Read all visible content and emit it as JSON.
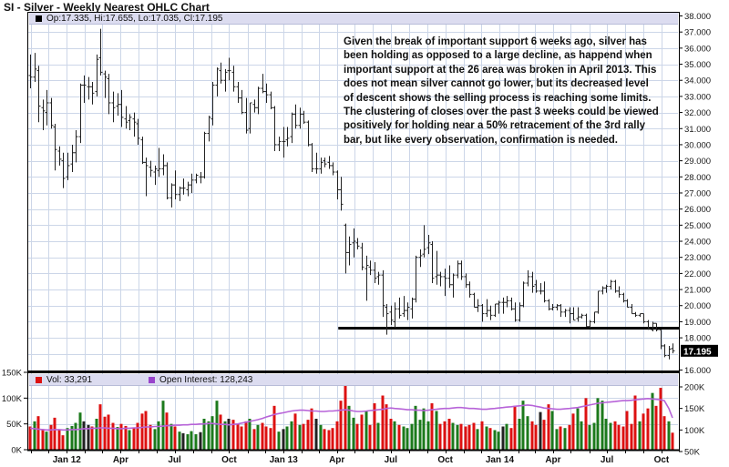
{
  "title": "SI - Silver - Weekly Nearest OHLC Chart",
  "price_legend": {
    "marker_color": "#000000",
    "text": "Op:17.335, Hi:17.655, Lo:17.035, Cl:17.195"
  },
  "volume_legend": {
    "vol_text": "Vol: 33,291",
    "vol_color": "#dd1111",
    "oi_text": "Open Interest: 128,243",
    "oi_color": "#9944cc"
  },
  "annotation": {
    "lines": [
      "Given the break of important support 6 weeks ago, silver has",
      "been holding as opposed to a large decline, as happend when",
      "important support at the 26 area was broken in April 2013.  This",
      "does not mean silver cannot go lower, but its decreased level",
      "of descent shows the selling process is reaching some limits.",
      "The clustering of closes over the past 3 weeks could be viewed",
      "positively for holding near a 50% retracement of the 3rd rally",
      "bar, but like every observation, confirmation is needed."
    ]
  },
  "axes": {
    "price_tick_values": [
      38,
      37,
      36,
      35,
      34,
      33,
      32,
      31,
      30,
      29,
      28,
      27,
      26,
      25,
      24,
      23,
      22,
      21,
      20,
      19,
      18,
      16
    ],
    "price_highlight": {
      "label": "17.195",
      "value": 17.195
    },
    "volume_ticks_left": [
      {
        "v": 150,
        "t": "150K"
      },
      {
        "v": 100,
        "t": "100K"
      },
      {
        "v": 50,
        "t": "50K"
      },
      {
        "v": 0,
        "t": "0K"
      }
    ],
    "oi_ticks_right": [
      {
        "v": 200,
        "t": "200K"
      },
      {
        "v": 150,
        "t": "150K"
      },
      {
        "v": 100,
        "t": "100K"
      },
      {
        "v": 50,
        "t": "50K"
      }
    ],
    "x_labels": [
      {
        "m": 2,
        "t": "Jan 12"
      },
      {
        "m": 5,
        "t": "Apr"
      },
      {
        "m": 8,
        "t": "Jul"
      },
      {
        "m": 11,
        "t": "Oct"
      },
      {
        "m": 14,
        "t": "Jan 13"
      },
      {
        "m": 17,
        "t": "Apr"
      },
      {
        "m": 20,
        "t": "Jul"
      },
      {
        "m": 23,
        "t": "Oct"
      },
      {
        "m": 26,
        "t": "Jan 14"
      },
      {
        "m": 29,
        "t": "Apr"
      },
      {
        "m": 32,
        "t": "Jul"
      },
      {
        "m": 35,
        "t": "Oct"
      }
    ]
  },
  "chart_data": {
    "type": "ohlc",
    "interval": "weekly",
    "start_date": "2011-10-31",
    "title": "SI - Silver - Weekly Nearest OHLC Chart",
    "price_axis": {
      "min": 16,
      "max": 38,
      "tick_step": 1,
      "last_close": 17.195
    },
    "volume_axis": {
      "min": 0,
      "max": 150000
    },
    "oi_axis": {
      "min": 50000,
      "max": 200000,
      "last_value": 128243
    },
    "last_week": {
      "open": 17.335,
      "high": 17.655,
      "low": 17.035,
      "close": 17.195,
      "volume": 33291,
      "open_interest": 128243
    },
    "support_line": {
      "price": 18.6,
      "start_week_index": 75
    },
    "ohlc": [
      [
        34.3,
        35.6,
        33.5,
        34.2
      ],
      [
        34.2,
        35.7,
        33.9,
        34.7
      ],
      [
        34.6,
        34.9,
        31.4,
        32.4
      ],
      [
        32.3,
        32.8,
        30.9,
        32.1
      ],
      [
        32.0,
        33.4,
        31.2,
        32.6
      ],
      [
        32.6,
        32.9,
        31.0,
        31.2
      ],
      [
        31.1,
        31.3,
        28.4,
        29.7
      ],
      [
        29.6,
        29.9,
        28.7,
        29.1
      ],
      [
        29.0,
        29.5,
        27.3,
        27.9
      ],
      [
        28.0,
        29.5,
        27.8,
        28.7
      ],
      [
        28.8,
        30.0,
        28.3,
        29.5
      ],
      [
        29.5,
        30.9,
        28.9,
        30.5
      ],
      [
        30.5,
        33.8,
        30.1,
        33.7
      ],
      [
        33.7,
        34.3,
        32.6,
        33.7
      ],
      [
        33.6,
        34.2,
        32.8,
        33.6
      ],
      [
        33.6,
        33.9,
        32.5,
        33.2
      ],
      [
        33.3,
        35.6,
        33.0,
        35.3
      ],
      [
        35.4,
        37.2,
        34.3,
        34.5
      ],
      [
        34.4,
        34.6,
        32.9,
        34.2
      ],
      [
        34.1,
        34.4,
        31.9,
        32.6
      ],
      [
        32.6,
        33.3,
        31.4,
        32.3
      ],
      [
        32.4,
        33.2,
        31.8,
        32.5
      ],
      [
        32.5,
        33.4,
        31.1,
        31.7
      ],
      [
        31.6,
        32.4,
        31.0,
        31.4
      ],
      [
        31.5,
        31.9,
        30.9,
        31.7
      ],
      [
        31.6,
        32.0,
        30.5,
        31.4
      ],
      [
        31.3,
        31.6,
        30.0,
        30.4
      ],
      [
        30.3,
        30.5,
        28.8,
        28.9
      ],
      [
        28.9,
        29.2,
        26.8,
        28.7
      ],
      [
        28.6,
        29.0,
        28.0,
        28.4
      ],
      [
        28.3,
        28.7,
        27.5,
        28.5
      ],
      [
        28.4,
        29.8,
        28.0,
        28.5
      ],
      [
        28.5,
        29.4,
        28.1,
        28.7
      ],
      [
        28.7,
        28.9,
        26.6,
        26.7
      ],
      [
        26.7,
        27.6,
        26.1,
        27.5
      ],
      [
        27.5,
        28.4,
        26.6,
        26.9
      ],
      [
        26.9,
        27.4,
        26.5,
        27.3
      ],
      [
        27.3,
        27.9,
        26.9,
        27.3
      ],
      [
        27.2,
        27.7,
        26.8,
        27.5
      ],
      [
        27.5,
        28.2,
        27.0,
        27.8
      ],
      [
        27.8,
        28.2,
        27.6,
        28.1
      ],
      [
        28.0,
        28.3,
        27.6,
        28.0
      ],
      [
        28.0,
        30.8,
        27.9,
        30.7
      ],
      [
        30.7,
        31.8,
        30.2,
        31.7
      ],
      [
        31.6,
        33.9,
        31.2,
        33.7
      ],
      [
        33.7,
        34.8,
        33.0,
        34.7
      ],
      [
        34.6,
        35.1,
        33.8,
        34.0
      ],
      [
        34.0,
        34.7,
        33.3,
        34.5
      ],
      [
        34.6,
        35.4,
        34.0,
        34.6
      ],
      [
        34.5,
        34.9,
        33.3,
        33.6
      ],
      [
        33.6,
        33.9,
        32.6,
        32.9
      ],
      [
        32.9,
        33.4,
        31.9,
        32.0
      ],
      [
        32.0,
        32.9,
        30.7,
        30.9
      ],
      [
        31.0,
        32.6,
        30.7,
        32.6
      ],
      [
        32.5,
        32.8,
        32.0,
        32.3
      ],
      [
        32.3,
        33.6,
        31.9,
        33.5
      ],
      [
        33.5,
        34.4,
        33.2,
        33.3
      ],
      [
        33.3,
        33.8,
        32.6,
        33.1
      ],
      [
        33.1,
        33.3,
        32.2,
        32.3
      ],
      [
        32.3,
        32.4,
        29.6,
        30.0
      ],
      [
        30.0,
        30.5,
        29.6,
        30.2
      ],
      [
        30.2,
        31.1,
        29.2,
        30.2
      ],
      [
        30.3,
        31.1,
        29.9,
        30.4
      ],
      [
        30.5,
        32.0,
        30.1,
        31.9
      ],
      [
        31.9,
        32.5,
        31.0,
        31.2
      ],
      [
        31.2,
        32.3,
        31.0,
        31.9
      ],
      [
        31.9,
        32.1,
        31.3,
        31.4
      ],
      [
        31.4,
        31.5,
        29.9,
        30.0
      ],
      [
        30.0,
        30.1,
        28.3,
        28.5
      ],
      [
        28.5,
        29.5,
        28.2,
        28.5
      ],
      [
        28.5,
        29.2,
        28.2,
        28.9
      ],
      [
        29.0,
        29.2,
        28.6,
        28.8
      ],
      [
        28.9,
        29.3,
        28.5,
        28.7
      ],
      [
        28.7,
        28.9,
        28.1,
        28.3
      ],
      [
        28.3,
        28.4,
        26.6,
        27.2
      ],
      [
        27.2,
        28.0,
        25.9,
        26.3
      ],
      [
        25.0,
        25.1,
        22.0,
        23.3
      ],
      [
        23.3,
        24.3,
        22.5,
        23.8
      ],
      [
        23.9,
        24.8,
        23.0,
        24.0
      ],
      [
        23.9,
        24.2,
        23.5,
        23.7
      ],
      [
        23.6,
        23.9,
        22.2,
        22.4
      ],
      [
        22.3,
        23.1,
        20.3,
        22.5
      ],
      [
        22.4,
        22.8,
        21.9,
        22.2
      ],
      [
        22.2,
        22.7,
        21.4,
        21.7
      ],
      [
        21.8,
        22.1,
        21.3,
        21.9
      ],
      [
        21.9,
        22.2,
        19.3,
        20.0
      ],
      [
        19.9,
        20.1,
        18.2,
        19.5
      ],
      [
        19.6,
        20.0,
        18.8,
        19.1
      ],
      [
        19.0,
        20.2,
        18.6,
        19.8
      ],
      [
        19.8,
        20.5,
        19.2,
        19.4
      ],
      [
        19.5,
        20.6,
        19.3,
        19.7
      ],
      [
        19.7,
        20.2,
        19.1,
        19.9
      ],
      [
        19.8,
        20.5,
        19.2,
        20.4
      ],
      [
        20.4,
        23.1,
        20.2,
        23.0
      ],
      [
        23.0,
        23.5,
        22.4,
        23.1
      ],
      [
        23.2,
        25.0,
        23.0,
        23.5
      ],
      [
        23.6,
        24.4,
        23.2,
        23.9
      ],
      [
        23.8,
        24.0,
        21.4,
        21.7
      ],
      [
        21.8,
        23.4,
        21.3,
        21.9
      ],
      [
        21.9,
        22.1,
        21.2,
        21.8
      ],
      [
        21.8,
        22.3,
        20.6,
        21.7
      ],
      [
        21.7,
        22.5,
        21.1,
        21.3
      ],
      [
        21.3,
        22.0,
        20.5,
        21.9
      ],
      [
        21.9,
        22.8,
        21.7,
        22.6
      ],
      [
        22.6,
        22.8,
        21.6,
        21.8
      ],
      [
        21.8,
        22.0,
        21.1,
        21.3
      ],
      [
        21.3,
        21.5,
        20.5,
        20.7
      ],
      [
        20.7,
        20.8,
        19.9,
        19.9
      ],
      [
        19.9,
        20.4,
        19.6,
        20.0
      ],
      [
        20.0,
        20.1,
        19.0,
        19.5
      ],
      [
        19.5,
        20.4,
        19.3,
        19.7
      ],
      [
        19.7,
        20.0,
        19.1,
        19.4
      ],
      [
        19.4,
        20.1,
        19.3,
        20.1
      ],
      [
        20.1,
        20.3,
        19.5,
        20.2
      ],
      [
        20.2,
        20.5,
        19.5,
        20.2
      ],
      [
        20.2,
        20.6,
        19.9,
        20.3
      ],
      [
        20.3,
        20.5,
        19.7,
        19.8
      ],
      [
        19.8,
        20.2,
        19.0,
        19.1
      ],
      [
        19.1,
        20.2,
        19.0,
        20.0
      ],
      [
        20.0,
        21.5,
        19.9,
        21.4
      ],
      [
        21.4,
        22.2,
        21.2,
        21.8
      ],
      [
        21.8,
        22.1,
        20.8,
        21.2
      ],
      [
        21.3,
        21.6,
        20.8,
        20.9
      ],
      [
        20.9,
        21.4,
        20.7,
        20.9
      ],
      [
        20.9,
        21.5,
        20.2,
        20.3
      ],
      [
        20.3,
        20.4,
        19.7,
        19.8
      ],
      [
        19.8,
        20.1,
        19.7,
        19.9
      ],
      [
        19.9,
        20.1,
        19.7,
        20.0
      ],
      [
        20.0,
        20.1,
        19.3,
        19.6
      ],
      [
        19.6,
        19.8,
        19.3,
        19.7
      ],
      [
        19.7,
        19.9,
        18.9,
        19.5
      ],
      [
        19.5,
        19.9,
        19.1,
        19.1
      ],
      [
        19.2,
        19.9,
        19.0,
        19.3
      ],
      [
        19.3,
        19.5,
        19.2,
        19.4
      ],
      [
        19.4,
        19.5,
        18.7,
        18.7
      ],
      [
        18.7,
        19.1,
        18.6,
        19.0
      ],
      [
        19.0,
        19.6,
        18.9,
        19.6
      ],
      [
        19.6,
        20.9,
        19.5,
        20.9
      ],
      [
        20.9,
        21.2,
        20.7,
        21.1
      ],
      [
        21.1,
        21.3,
        20.8,
        21.2
      ],
      [
        21.2,
        21.6,
        21.0,
        21.5
      ],
      [
        21.5,
        21.6,
        20.8,
        20.9
      ],
      [
        20.9,
        21.2,
        20.5,
        20.7
      ],
      [
        20.7,
        20.8,
        20.2,
        20.3
      ],
      [
        20.3,
        20.4,
        19.9,
        19.9
      ],
      [
        19.9,
        20.1,
        19.5,
        19.5
      ],
      [
        19.5,
        19.6,
        19.3,
        19.4
      ],
      [
        19.4,
        19.5,
        19.3,
        19.5
      ],
      [
        19.5,
        19.5,
        18.9,
        19.0
      ],
      [
        19.0,
        19.1,
        18.5,
        18.6
      ],
      [
        18.5,
        19.0,
        18.4,
        18.9
      ],
      [
        18.9,
        18.9,
        18.4,
        18.5
      ],
      [
        18.5,
        18.5,
        17.3,
        17.5
      ],
      [
        17.5,
        17.6,
        16.8,
        16.9
      ],
      [
        16.9,
        17.5,
        16.66,
        17.3
      ],
      [
        17.335,
        17.655,
        17.035,
        17.195
      ]
    ],
    "volume_thousands": [
      45,
      55,
      65,
      40,
      35,
      48,
      62,
      38,
      28,
      42,
      46,
      52,
      72,
      55,
      48,
      45,
      60,
      88,
      64,
      68,
      52,
      44,
      50,
      46,
      38,
      42,
      52,
      70,
      75,
      48,
      40,
      55,
      95,
      72,
      50,
      45,
      35,
      32,
      30,
      36,
      30,
      34,
      60,
      55,
      65,
      95,
      68,
      55,
      60,
      58,
      50,
      45,
      55,
      60,
      40,
      48,
      52,
      45,
      42,
      85,
      35,
      40,
      45,
      55,
      70,
      48,
      50,
      58,
      80,
      60,
      48,
      40,
      38,
      42,
      55,
      95,
      125,
      85,
      62,
      50,
      68,
      75,
      48,
      90,
      52,
      105,
      88,
      60,
      55,
      48,
      45,
      42,
      50,
      85,
      58,
      80,
      55,
      90,
      75,
      50,
      55,
      60,
      52,
      48,
      50,
      45,
      48,
      52,
      40,
      55,
      45,
      42,
      38,
      35,
      45,
      50,
      42,
      85,
      60,
      95,
      65,
      55,
      48,
      73,
      58,
      88,
      75,
      40,
      45,
      42,
      48,
      70,
      80,
      55,
      100,
      48,
      52,
      100,
      95,
      60,
      52,
      55,
      48,
      45,
      75,
      50,
      105,
      55,
      70,
      80,
      110,
      85,
      120,
      65,
      55,
      33
    ],
    "open_interest_thousands": [
      104,
      103,
      102,
      101,
      100,
      100,
      101,
      101,
      100,
      100,
      101,
      101,
      102,
      103,
      103,
      104,
      104,
      105,
      105,
      104,
      104,
      103,
      103,
      104,
      104,
      105,
      105,
      106,
      107,
      107,
      108,
      108,
      109,
      110,
      110,
      111,
      111,
      112,
      112,
      113,
      113,
      114,
      114,
      115,
      115,
      114,
      113,
      113,
      112,
      113,
      114,
      116,
      118,
      120,
      122,
      124,
      127,
      130,
      133,
      136,
      138,
      140,
      142,
      144,
      145,
      146,
      146,
      145,
      144,
      144,
      143,
      143,
      144,
      144,
      145,
      146,
      147,
      146,
      144,
      143,
      143,
      144,
      145,
      146,
      147,
      148,
      150,
      151,
      150,
      149,
      148,
      147,
      147,
      146,
      146,
      145,
      146,
      147,
      148,
      149,
      150,
      150,
      151,
      152,
      152,
      151,
      150,
      150,
      149,
      148,
      148,
      149,
      150,
      151,
      152,
      153,
      154,
      155,
      156,
      157,
      158,
      157,
      155,
      153,
      151,
      150,
      149,
      148,
      148,
      149,
      150,
      151,
      152,
      154,
      156,
      158,
      160,
      162,
      163,
      164,
      165,
      166,
      167,
      168,
      168,
      169,
      170,
      171,
      172,
      173,
      172,
      171,
      170,
      168,
      150,
      128.2
    ],
    "colors": {
      "bar": "#222222",
      "vol_up": "#1c7a1c",
      "vol_down": "#dd1111",
      "vol_flat": "#222222",
      "oi_line": "#b763d8",
      "grid": "#ccd6e8",
      "support": "#000000",
      "legend_bg": "#dcdcf0"
    }
  }
}
